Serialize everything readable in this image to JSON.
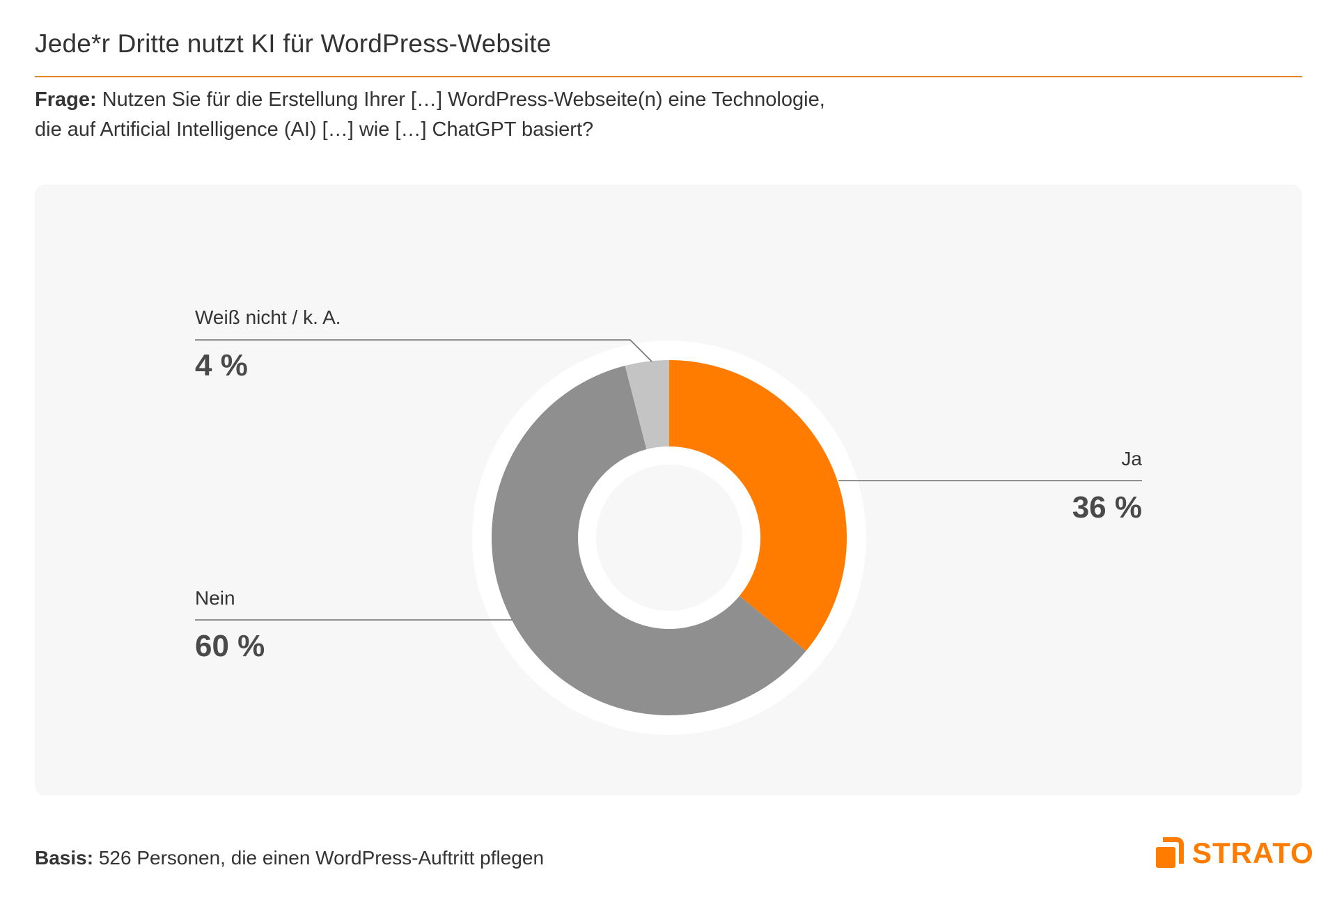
{
  "header": {
    "title": "Jede*r Dritte nutzt KI für WordPress-Website",
    "accent_color": "#E8832A"
  },
  "question": {
    "label": "Frage:",
    "line1": " Nutzen Sie für die Erstellung Ihrer […] WordPress-Webseite(n) eine Technologie,",
    "line2": "die auf Artificial Intelligence (AI) […] wie […] ChatGPT basiert?"
  },
  "labels": {
    "ja": {
      "name": "Ja",
      "value": "36 %"
    },
    "nein": {
      "name": "Nein",
      "value": "60 %"
    },
    "weiss_nicht": {
      "name": "Weiß nicht / k. A.",
      "value": "4 %"
    }
  },
  "footer": {
    "basis_label": "Basis:",
    "basis_text": " 526 Personen, die einen WordPress-Auftritt pflegen"
  },
  "logo": {
    "text": "STRATO",
    "color": "#FF7C00"
  },
  "chart_data": {
    "type": "pie",
    "subtype": "donut",
    "title": "Jede*r Dritte nutzt KI für WordPress-Website",
    "subtitle": "Frage: Nutzen Sie für die Erstellung Ihrer […] WordPress-Webseite(n) eine Technologie, die auf Artificial Intelligence (AI) […] wie […] ChatGPT basiert?",
    "categories": [
      "Ja",
      "Nein",
      "Weiß nicht / k. A."
    ],
    "values": [
      36,
      60,
      4
    ],
    "unit": "%",
    "colors": [
      "#FF7C00",
      "#8F8F8F",
      "#C4C4C4"
    ],
    "start_angle_deg": 0,
    "direction": "clockwise",
    "note": "Basis: 526 Personen, die einen WordPress-Auftritt pflegen"
  }
}
